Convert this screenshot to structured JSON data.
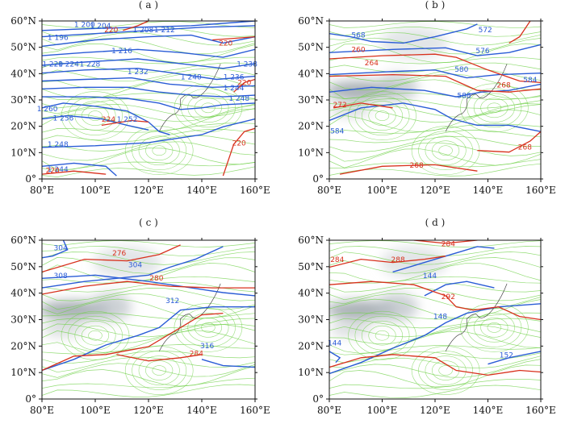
{
  "chart_data": [
    {
      "type": "contour",
      "panel_label": "( a )",
      "x_ticks": [
        "80°E",
        "100°E",
        "120°E",
        "140°E",
        "160°E"
      ],
      "y_ticks": [
        "0°",
        "10°N",
        "20°N",
        "30°N",
        "40°N",
        "50°N",
        "60°N"
      ],
      "xlim": [
        80,
        160
      ],
      "ylim": [
        0,
        60
      ],
      "shaded": false,
      "contour_labels": [
        {
          "text": "1 200",
          "lon": 96,
          "lat": 58.5,
          "color": "blue"
        },
        {
          "text": "1 204",
          "lon": 102,
          "lat": 58,
          "color": "blue"
        },
        {
          "text": "220",
          "lon": 106,
          "lat": 56.5,
          "color": "red"
        },
        {
          "text": "1 208",
          "lon": 118,
          "lat": 56.5,
          "color": "blue"
        },
        {
          "text": "1 212",
          "lon": 126,
          "lat": 56.5,
          "color": "blue"
        },
        {
          "text": "1 196",
          "lon": 86,
          "lat": 53.5,
          "color": "blue"
        },
        {
          "text": "220",
          "lon": 149,
          "lat": 51.5,
          "color": "red"
        },
        {
          "text": "1 216",
          "lon": 110,
          "lat": 48.5,
          "color": "blue"
        },
        {
          "text": "1 220",
          "lon": 84,
          "lat": 43.5,
          "color": "blue"
        },
        {
          "text": "1 224",
          "lon": 90,
          "lat": 43.5,
          "color": "blue"
        },
        {
          "text": "1 228",
          "lon": 98,
          "lat": 43.5,
          "color": "blue"
        },
        {
          "text": "1 232",
          "lon": 116,
          "lat": 40.5,
          "color": "blue"
        },
        {
          "text": "1 240",
          "lon": 136,
          "lat": 38.5,
          "color": "blue"
        },
        {
          "text": "1 238",
          "lon": 157,
          "lat": 43.5,
          "color": "blue"
        },
        {
          "text": "1 236",
          "lon": 152,
          "lat": 38.5,
          "color": "blue"
        },
        {
          "text": "1 244",
          "lon": 152,
          "lat": 34.5,
          "color": "blue"
        },
        {
          "text": "220",
          "lon": 156,
          "lat": 36.5,
          "color": "red"
        },
        {
          "text": "1 248",
          "lon": 154,
          "lat": 30.5,
          "color": "blue"
        },
        {
          "text": "1 260",
          "lon": 82,
          "lat": 26.5,
          "color": "blue"
        },
        {
          "text": "1 256",
          "lon": 88,
          "lat": 23,
          "color": "blue"
        },
        {
          "text": "224",
          "lon": 105,
          "lat": 22.5,
          "color": "red"
        },
        {
          "text": "1 252",
          "lon": 112,
          "lat": 22.5,
          "color": "blue"
        },
        {
          "text": "220",
          "lon": 154,
          "lat": 13.5,
          "color": "red"
        },
        {
          "text": "1 248",
          "lon": 86,
          "lat": 13,
          "color": "blue"
        },
        {
          "text": "1 244",
          "lon": 86,
          "lat": 3.5,
          "color": "blue"
        },
        {
          "text": "220",
          "lon": 84,
          "lat": 3,
          "color": "red"
        }
      ]
    },
    {
      "type": "contour",
      "panel_label": "( b )",
      "x_ticks": [
        "80°E",
        "100°E",
        "120°E",
        "140°E",
        "160°E"
      ],
      "y_ticks": [
        "0°",
        "10°N",
        "20°N",
        "30°N",
        "40°N",
        "50°N",
        "60°N"
      ],
      "xlim": [
        80,
        160
      ],
      "ylim": [
        0,
        60
      ],
      "shaded": true,
      "contour_labels": [
        {
          "text": "568",
          "lon": 91,
          "lat": 54.5,
          "color": "blue"
        },
        {
          "text": "572",
          "lon": 139,
          "lat": 56.5,
          "color": "blue"
        },
        {
          "text": "260",
          "lon": 91,
          "lat": 49,
          "color": "red"
        },
        {
          "text": "576",
          "lon": 138,
          "lat": 48.5,
          "color": "blue"
        },
        {
          "text": "264",
          "lon": 96,
          "lat": 44,
          "color": "red"
        },
        {
          "text": "580",
          "lon": 130,
          "lat": 41.5,
          "color": "blue"
        },
        {
          "text": "584",
          "lon": 156,
          "lat": 37.5,
          "color": "blue"
        },
        {
          "text": "268",
          "lon": 146,
          "lat": 35.5,
          "color": "red"
        },
        {
          "text": "588",
          "lon": 131,
          "lat": 31.5,
          "color": "blue"
        },
        {
          "text": "272",
          "lon": 84,
          "lat": 28,
          "color": "red"
        },
        {
          "text": "584",
          "lon": 83,
          "lat": 18,
          "color": "blue"
        },
        {
          "text": "268",
          "lon": 154,
          "lat": 12,
          "color": "red"
        },
        {
          "text": "268",
          "lon": 113,
          "lat": 5,
          "color": "red"
        }
      ]
    },
    {
      "type": "contour",
      "panel_label": "( c )",
      "x_ticks": [
        "80°E",
        "100°E",
        "120°E",
        "140°E",
        "160°E"
      ],
      "y_ticks": [
        "0°",
        "10°N",
        "20°N",
        "30°N",
        "40°N",
        "50°N",
        "60°N"
      ],
      "xlim": [
        80,
        160
      ],
      "ylim": [
        0,
        60
      ],
      "shaded": true,
      "contour_labels": [
        {
          "text": "304",
          "lon": 87,
          "lat": 57,
          "color": "blue"
        },
        {
          "text": "276",
          "lon": 109,
          "lat": 55,
          "color": "red"
        },
        {
          "text": "304",
          "lon": 115,
          "lat": 50.5,
          "color": "blue"
        },
        {
          "text": "308",
          "lon": 87,
          "lat": 46.5,
          "color": "blue"
        },
        {
          "text": "280",
          "lon": 123,
          "lat": 45.5,
          "color": "red"
        },
        {
          "text": "312",
          "lon": 129,
          "lat": 37,
          "color": "blue"
        },
        {
          "text": "316",
          "lon": 142,
          "lat": 20,
          "color": "blue"
        },
        {
          "text": "284",
          "lon": 138,
          "lat": 17,
          "color": "red"
        }
      ]
    },
    {
      "type": "contour",
      "panel_label": "( d )",
      "x_ticks": [
        "80°E",
        "100°E",
        "120°E",
        "140°E",
        "160°E"
      ],
      "y_ticks": [
        "0°",
        "10°N",
        "20°N",
        "30°N",
        "40°N",
        "50°N",
        "60°N"
      ],
      "xlim": [
        80,
        160
      ],
      "ylim": [
        0,
        60
      ],
      "shaded": true,
      "contour_labels": [
        {
          "text": "284",
          "lon": 125,
          "lat": 58.5,
          "color": "red"
        },
        {
          "text": "284",
          "lon": 83,
          "lat": 52.5,
          "color": "red"
        },
        {
          "text": "288",
          "lon": 106,
          "lat": 52.5,
          "color": "red"
        },
        {
          "text": "144",
          "lon": 118,
          "lat": 46.5,
          "color": "blue"
        },
        {
          "text": "292",
          "lon": 125,
          "lat": 38.5,
          "color": "red"
        },
        {
          "text": "148",
          "lon": 122,
          "lat": 31,
          "color": "blue"
        },
        {
          "text": "144",
          "lon": 82,
          "lat": 21,
          "color": "blue"
        },
        {
          "text": "152",
          "lon": 147,
          "lat": 16.5,
          "color": "blue"
        }
      ]
    }
  ]
}
